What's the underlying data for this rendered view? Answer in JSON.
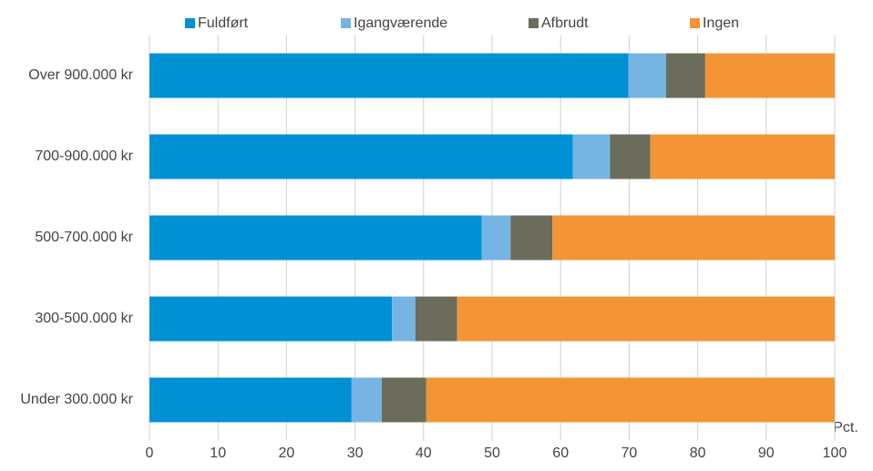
{
  "chart_data": {
    "type": "stacked-barh",
    "categories": [
      "Over 900.000 kr",
      "700-900.000 kr",
      "500-700.000 kr",
      "300-500.000 kr",
      "Under 300.000 kr"
    ],
    "series": [
      {
        "name": "Fuldført",
        "color": "#0091d5",
        "values": [
          69.9,
          61.8,
          48.5,
          35.4,
          29.5
        ]
      },
      {
        "name": "Igangværende",
        "color": "#76b4e3",
        "values": [
          5.5,
          5.4,
          4.2,
          3.4,
          4.4
        ]
      },
      {
        "name": "Afbrudt",
        "color": "#6c6c5c",
        "values": [
          5.7,
          5.9,
          6.1,
          6.1,
          6.5
        ]
      },
      {
        "name": "Ingen",
        "color": "#f39535",
        "values": [
          18.9,
          26.9,
          41.2,
          55.1,
          59.6
        ]
      }
    ],
    "xlabel": "Pct.",
    "xlim": [
      0,
      100
    ],
    "xticks": [
      0,
      10,
      20,
      30,
      40,
      50,
      60,
      70,
      80,
      90,
      100
    ],
    "grid": true
  }
}
